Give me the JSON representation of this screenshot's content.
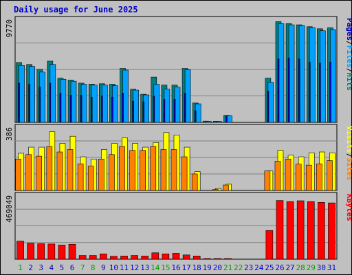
{
  "title": "Daily usage for June 2025",
  "chart_data": [
    {
      "type": "bar",
      "panel": "hits-files-pages",
      "ymax_label": "9770",
      "legend": [
        "Pages",
        "/",
        "Files",
        "/",
        "Hits"
      ],
      "colors": {
        "Hits": "#008080",
        "Files": "#00a0ff",
        "Pages": "#0000c0"
      },
      "categories": [
        "1",
        "2",
        "3",
        "4",
        "5",
        "6",
        "7",
        "8",
        "9",
        "10",
        "11",
        "12",
        "13",
        "14",
        "15",
        "16",
        "17",
        "18",
        "19",
        "20",
        "21",
        "22",
        "23",
        "24",
        "25",
        "26",
        "27",
        "28",
        "29",
        "30",
        "31"
      ],
      "ylim": [
        0,
        9770
      ],
      "series": [
        {
          "name": "Hits",
          "values": [
            5750,
            5560,
            5090,
            5880,
            4250,
            4060,
            3770,
            3670,
            3710,
            3670,
            5180,
            3190,
            2700,
            4350,
            3580,
            3580,
            5180,
            1860,
            120,
            110,
            680,
            0,
            0,
            0,
            4250,
            9670,
            9480,
            9370,
            9190,
            8990,
            9090
          ]
        },
        {
          "name": "Files",
          "values": [
            5460,
            5370,
            4830,
            5560,
            4140,
            3950,
            3660,
            3580,
            3580,
            3520,
            5020,
            3100,
            2640,
            3660,
            3190,
            3390,
            5050,
            1780,
            100,
            100,
            650,
            0,
            0,
            0,
            3850,
            9480,
            9370,
            9290,
            9090,
            8800,
            8900
          ]
        },
        {
          "name": "Pages",
          "values": [
            3770,
            3660,
            3390,
            3770,
            2800,
            2610,
            2610,
            2420,
            2520,
            2420,
            2800,
            2040,
            1980,
            2520,
            2220,
            2220,
            2800,
            1120,
            0,
            0,
            560,
            0,
            0,
            0,
            3010,
            6090,
            6190,
            6090,
            5800,
            5700,
            5800
          ]
        }
      ]
    },
    {
      "type": "bar",
      "panel": "visits-sites",
      "ymax_label": "386",
      "legend": [
        "Visits",
        "/",
        "Sites"
      ],
      "colors": {
        "Visits": "#ffff00",
        "Sites": "#ff8000"
      },
      "categories": [
        "1",
        "2",
        "3",
        "4",
        "5",
        "6",
        "7",
        "8",
        "9",
        "10",
        "11",
        "12",
        "13",
        "14",
        "15",
        "16",
        "17",
        "18",
        "19",
        "20",
        "21",
        "22",
        "23",
        "24",
        "25",
        "26",
        "27",
        "28",
        "29",
        "30",
        "31"
      ],
      "ylim": [
        0,
        386
      ],
      "series": [
        {
          "name": "Visits",
          "values": [
            232,
            270,
            270,
            366,
            294,
            338,
            210,
            196,
            255,
            294,
            328,
            294,
            270,
            299,
            361,
            346,
            270,
            118,
            0,
            12,
            39,
            0,
            0,
            0,
            122,
            250,
            220,
            210,
            235,
            240,
            235
          ]
        },
        {
          "name": "Sites",
          "values": [
            196,
            224,
            214,
            274,
            240,
            255,
            166,
            152,
            196,
            224,
            274,
            250,
            250,
            274,
            255,
            255,
            210,
            103,
            0,
            6,
            34,
            0,
            0,
            0,
            122,
            182,
            196,
            164,
            158,
            166,
            186
          ]
        }
      ]
    },
    {
      "type": "bar",
      "panel": "kbytes",
      "ymax_label": "469049",
      "legend": [
        "KBytes"
      ],
      "colors": {
        "KBytes": "#ff0000"
      },
      "categories": [
        "1",
        "2",
        "3",
        "4",
        "5",
        "6",
        "7",
        "8",
        "9",
        "10",
        "11",
        "12",
        "13",
        "14",
        "15",
        "16",
        "17",
        "18",
        "19",
        "20",
        "21",
        "22",
        "23",
        "24",
        "25",
        "26",
        "27",
        "28",
        "29",
        "30",
        "31"
      ],
      "ylim": [
        0,
        469049
      ],
      "series": [
        {
          "name": "KBytes",
          "values": [
            135000,
            120000,
            116000,
            114000,
            106000,
            112000,
            28000,
            28000,
            40000,
            22000,
            24000,
            28000,
            24000,
            48000,
            40000,
            44000,
            32000,
            24000,
            3500,
            3500,
            3500,
            0,
            0,
            0,
            215000,
            440000,
            432000,
            438000,
            432000,
            426000,
            422000
          ]
        }
      ]
    }
  ],
  "x_labels": [
    "1",
    "2",
    "3",
    "4",
    "5",
    "6",
    "7",
    "8",
    "9",
    "10",
    "11",
    "12",
    "13",
    "14",
    "15",
    "16",
    "17",
    "18",
    "19",
    "20",
    "21",
    "22",
    "23",
    "24",
    "25",
    "26",
    "27",
    "28",
    "29",
    "30",
    "31"
  ],
  "weekend_days": [
    "1",
    "7",
    "8",
    "14",
    "15",
    "21",
    "22",
    "28",
    "29"
  ],
  "label_colors": {
    "weekday": "#0000cc",
    "weekend": "#00a000"
  }
}
